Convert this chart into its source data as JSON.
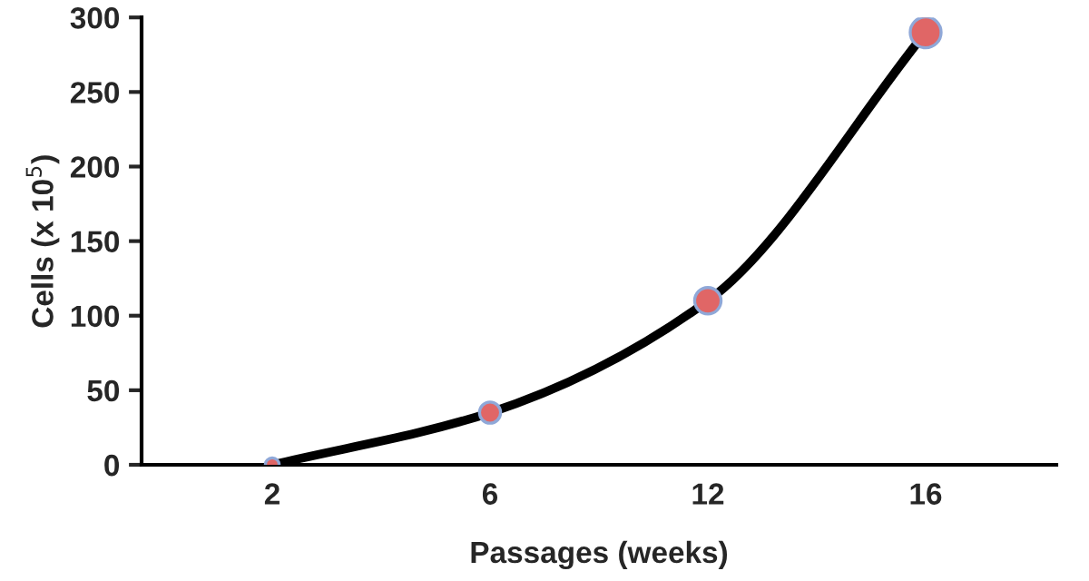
{
  "chart_data": {
    "type": "line",
    "xlabel": "Passages (weeks)",
    "ylabel": "Cells (x 10$^{5}$)",
    "categories": [
      "2",
      "6",
      "12",
      "16"
    ],
    "series": [
      {
        "color": "#000000",
        "values": [
          0,
          35,
          110,
          290
        ]
      }
    ],
    "ylim": [
      0,
      300
    ],
    "yticks": [
      0,
      50,
      100,
      150,
      200,
      250,
      300
    ],
    "marker": "circle",
    "grid": false
  }
}
